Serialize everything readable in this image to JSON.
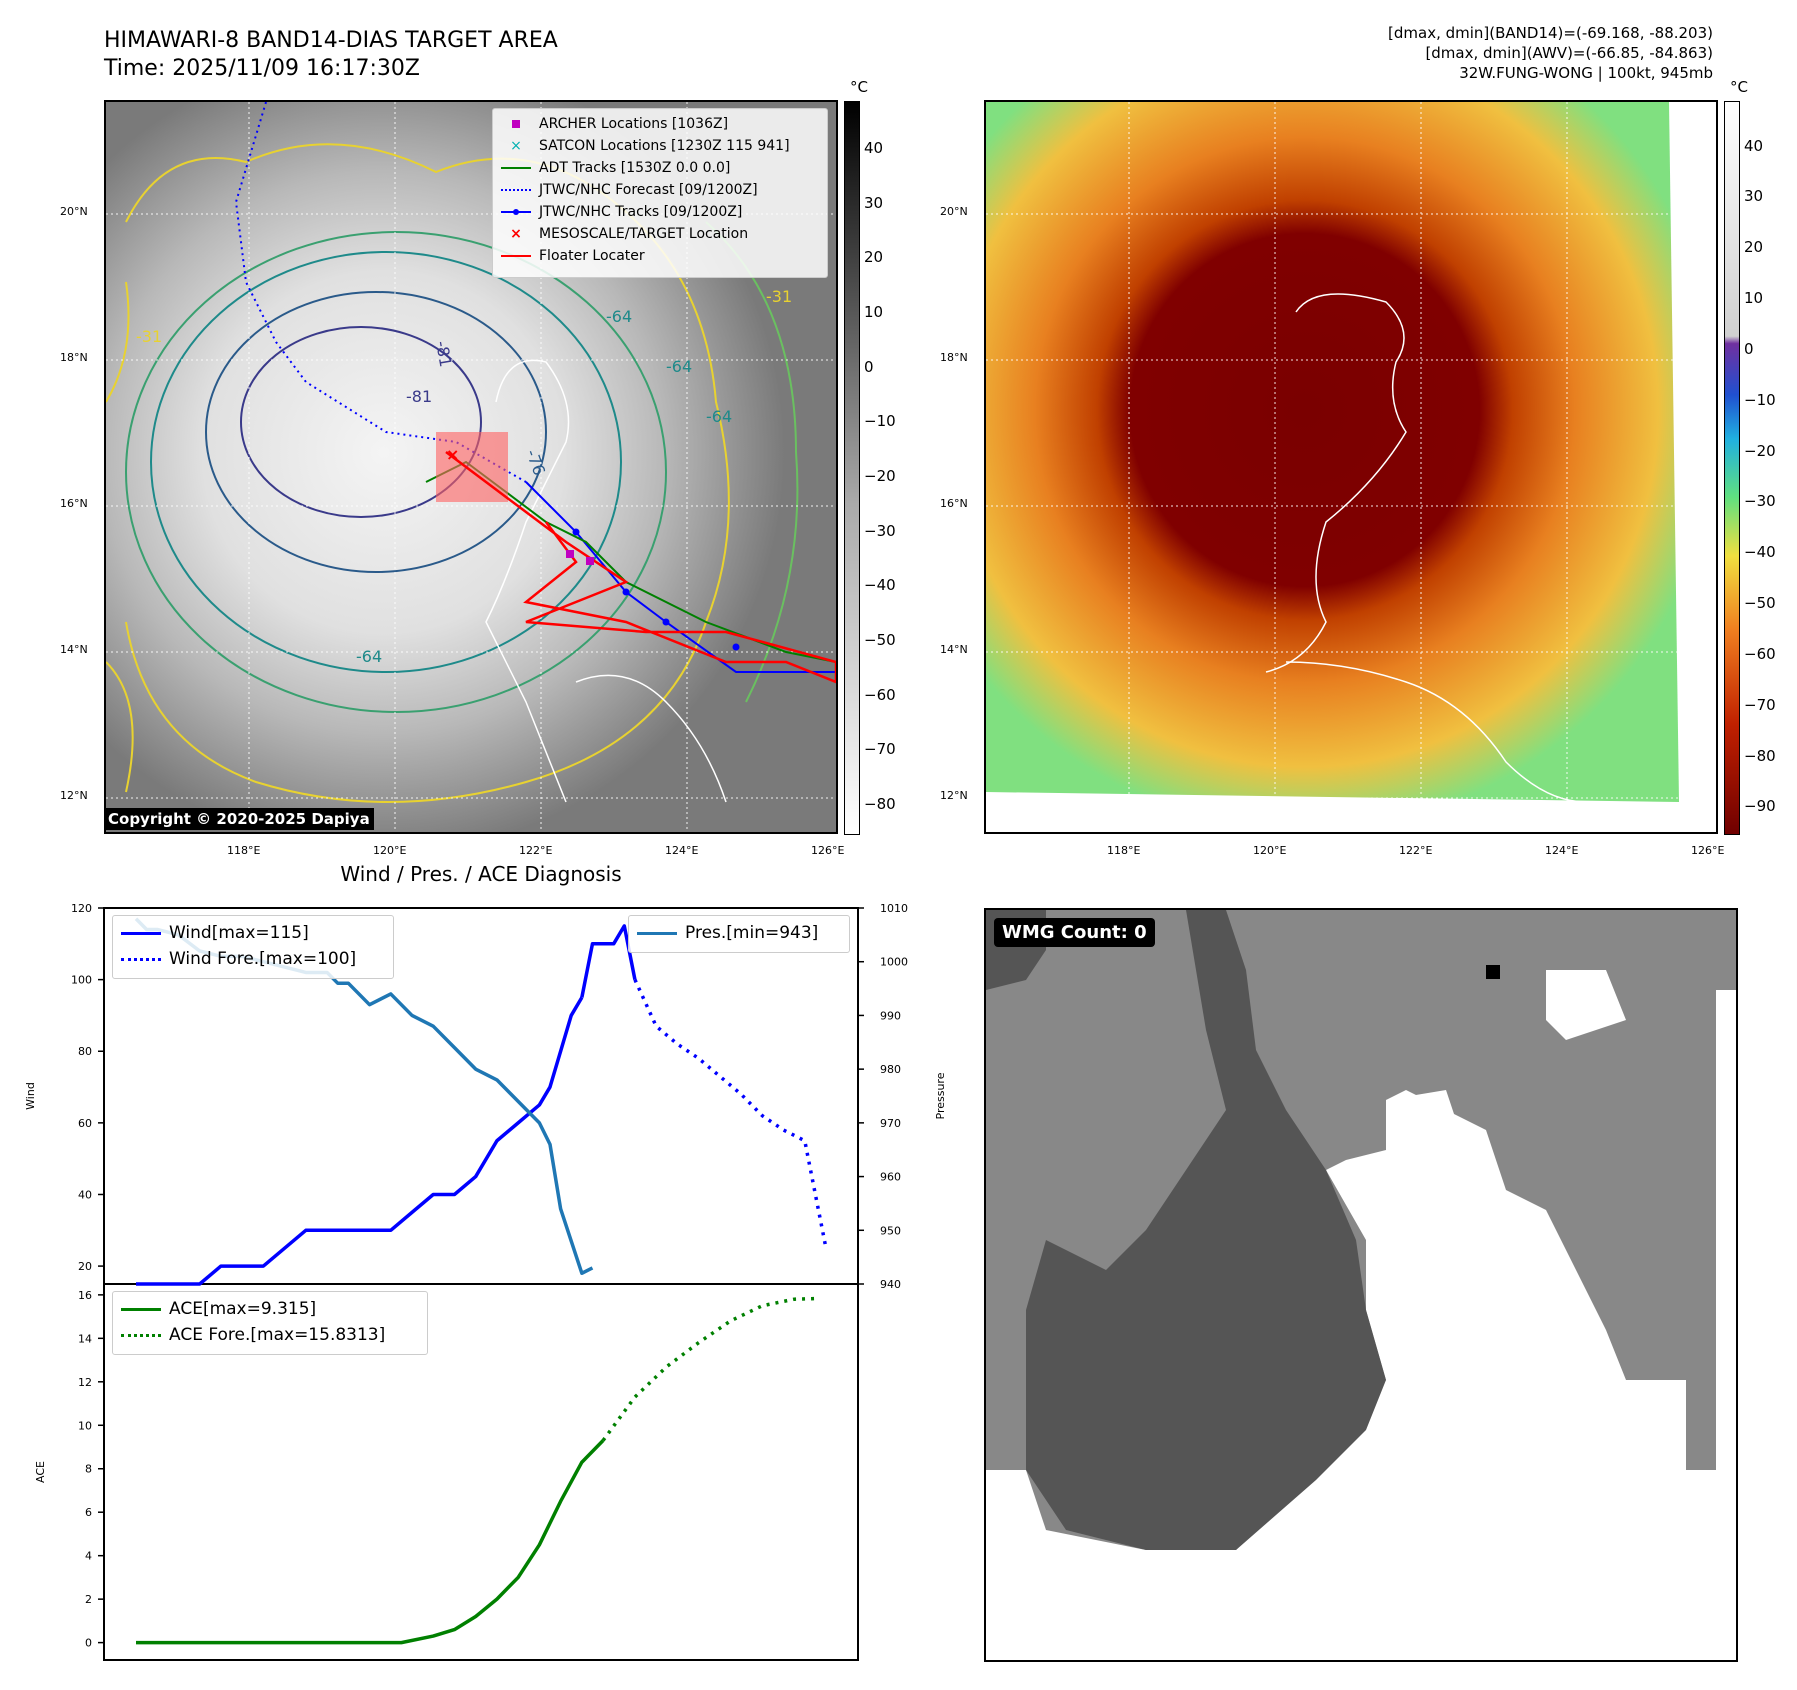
{
  "header": {
    "title_line1": "HIMAWARI-8 BAND14-DIAS TARGET AREA",
    "title_line2": "Time: 2025/11/09 16:17:30Z",
    "right_line1": "[dmax, dmin](BAND14)=(-69.168, -88.203)",
    "right_line2": "[dmax, dmin](AWV)=(-66.85, -84.863)",
    "right_line3": "32W.FUNG-WONG | 100kt, 945mb"
  },
  "map": {
    "lat_labels": [
      "20°N",
      "18°N",
      "16°N",
      "14°N",
      "12°N"
    ],
    "lon_labels": [
      "118°E",
      "120°E",
      "122°E",
      "124°E",
      "126°E"
    ],
    "contour_labels": [
      "-81",
      "-81",
      "-76",
      "-64",
      "-64",
      "-64",
      "-64",
      "-31",
      "-31"
    ],
    "copyright": "Copyright © 2020-2025 Dapiya",
    "legend": [
      {
        "label": "ARCHER Locations [1036Z]",
        "color": "#c000c0",
        "marker": "square"
      },
      {
        "label": "SATCON Locations [1230Z 115 941]",
        "color": "#00b0b0",
        "marker": "x"
      },
      {
        "label": "ADT Tracks [1530Z 0.0 0.0]",
        "color": "#008000",
        "marker": "line"
      },
      {
        "label": "JTWC/NHC Forecast [09/1200Z]",
        "color": "#0000ff",
        "marker": "dotted"
      },
      {
        "label": "JTWC/NHC Tracks [09/1200Z]",
        "color": "#0000ff",
        "marker": "line-dot"
      },
      {
        "label": "MESOSCALE/TARGET Location",
        "color": "#ff0000",
        "marker": "x"
      },
      {
        "label": "Floater Locater",
        "color": "#ff0000",
        "marker": "line"
      }
    ]
  },
  "colorbar_left": {
    "unit": "°C",
    "ticks": [
      "40",
      "30",
      "20",
      "10",
      "0",
      "−10",
      "−20",
      "−30",
      "−40",
      "−50",
      "−60",
      "−70",
      "−80"
    ]
  },
  "colorbar_right": {
    "unit": "°C",
    "ticks": [
      "40",
      "30",
      "20",
      "10",
      "0",
      "−10",
      "−20",
      "−30",
      "−40",
      "−50",
      "−60",
      "−70",
      "−80",
      "−90"
    ]
  },
  "wmg": {
    "label": "WMG Count: 0"
  },
  "chart_data": [
    {
      "type": "line",
      "title": "Wind / Pres. / ACE Diagnosis",
      "ylabel": "Wind",
      "ylabel_right": "Pressure",
      "ylim": [
        15,
        120
      ],
      "ylim_right": [
        940,
        1010
      ],
      "yticks": [
        20,
        40,
        60,
        80,
        100,
        120
      ],
      "yticks_right": [
        940,
        950,
        960,
        970,
        980,
        990,
        1000,
        1010
      ],
      "x_max": 65,
      "series": [
        {
          "name": "Wind[max=115]",
          "color": "#0000ff",
          "style": "solid",
          "x": [
            0,
            4,
            6,
            8,
            10,
            12,
            14,
            16,
            18,
            20,
            22,
            24,
            26,
            28,
            30,
            32,
            34,
            36,
            38,
            39,
            40,
            41,
            42
          ],
          "values": [
            15,
            15,
            15,
            20,
            20,
            20,
            25,
            30,
            30,
            30,
            30,
            30,
            35,
            40,
            40,
            45,
            55,
            60,
            65,
            70,
            80,
            90,
            95
          ]
        },
        {
          "name": "Wind[max=115]-cont",
          "color": "#0000ff",
          "style": "solid",
          "x": [
            42,
            43,
            44,
            45,
            46,
            47
          ],
          "values": [
            95,
            110,
            110,
            110,
            115,
            100
          ]
        },
        {
          "name": "Wind Fore.[max=100]",
          "color": "#0000ff",
          "style": "dotted",
          "x": [
            47,
            49,
            51,
            53,
            55,
            57,
            59,
            61,
            63,
            65
          ],
          "values": [
            100,
            87,
            82,
            78,
            73,
            68,
            62,
            58,
            55,
            25
          ]
        },
        {
          "name": "Pres.[min=943]",
          "color": "#1f77b4",
          "style": "solid",
          "axis": "right",
          "x": [
            0,
            1,
            2,
            4,
            6,
            8,
            10,
            12,
            14,
            16,
            18,
            19,
            20,
            22,
            24,
            26,
            28,
            30,
            32,
            34,
            35,
            36,
            37,
            38,
            39,
            40,
            41,
            42,
            43
          ],
          "values": [
            1008,
            1006,
            1006,
            1005,
            1002,
            1001,
            1001,
            1000,
            999,
            998,
            998,
            996,
            996,
            992,
            994,
            990,
            988,
            984,
            980,
            978,
            976,
            974,
            972,
            970,
            966,
            954,
            948,
            942,
            943
          ]
        }
      ],
      "legend": [
        {
          "label": "Wind[max=115]",
          "color": "#0000ff",
          "style": "solid"
        },
        {
          "label": "Wind Fore.[max=100]",
          "color": "#0000ff",
          "style": "dotted"
        },
        {
          "label": "Pres.[min=943]",
          "color": "#1f77b4",
          "style": "solid"
        }
      ]
    },
    {
      "type": "line",
      "ylabel": "ACE",
      "ylim": [
        -0.8,
        16.5
      ],
      "yticks": [
        0,
        2,
        4,
        6,
        8,
        10,
        12,
        14,
        16
      ],
      "x_max": 65,
      "series": [
        {
          "name": "ACE[max=9.315]",
          "color": "#008000",
          "style": "solid",
          "x": [
            0,
            5,
            10,
            15,
            20,
            25,
            28,
            30,
            32,
            34,
            36,
            38,
            40,
            42,
            44
          ],
          "values": [
            0,
            0,
            0,
            0,
            0,
            0,
            0.3,
            0.6,
            1.2,
            2,
            3,
            4.5,
            6.5,
            8.3,
            9.3
          ]
        },
        {
          "name": "ACE Fore.[max=15.8313]",
          "color": "#008000",
          "style": "dotted",
          "x": [
            44,
            47,
            50,
            53,
            56,
            59,
            62,
            64
          ],
          "values": [
            9.3,
            11.3,
            12.7,
            13.8,
            14.8,
            15.5,
            15.8,
            15.83
          ]
        }
      ],
      "legend": [
        {
          "label": "ACE[max=9.315]",
          "color": "#008000",
          "style": "solid"
        },
        {
          "label": "ACE Fore.[max=15.8313]",
          "color": "#008000",
          "style": "dotted"
        }
      ]
    }
  ]
}
